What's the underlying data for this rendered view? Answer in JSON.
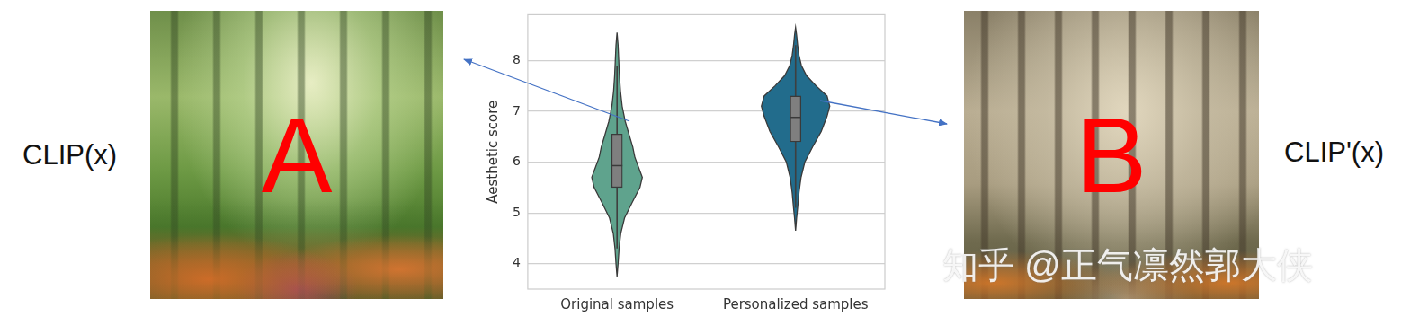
{
  "chart_data": {
    "type": "violin",
    "categories": [
      "Original samples",
      "Personalized samples"
    ],
    "ylabel": "Aesthetic score",
    "ylim": [
      3.5,
      8.9
    ],
    "yticks": [
      4,
      5,
      6,
      7,
      8
    ],
    "grid": true,
    "series": [
      {
        "color": "#5fa38d",
        "density_y": [
          3.75,
          4.0,
          4.3,
          4.6,
          4.9,
          5.2,
          5.5,
          5.7,
          5.9,
          6.1,
          6.3,
          6.5,
          6.8,
          7.1,
          7.4,
          7.7,
          8.0,
          8.3,
          8.55
        ],
        "density": [
          0,
          0.03,
          0.06,
          0.11,
          0.22,
          0.44,
          0.67,
          0.74,
          0.63,
          0.52,
          0.46,
          0.37,
          0.24,
          0.15,
          0.1,
          0.07,
          0.05,
          0.03,
          0
        ],
        "q1": 5.5,
        "median": 5.93,
        "q3": 6.55,
        "whisker_low": 4.3,
        "whisker_high": 7.9
      },
      {
        "color": "#226c8c",
        "density_y": [
          4.65,
          4.9,
          5.1,
          5.4,
          5.7,
          6.0,
          6.3,
          6.6,
          6.9,
          7.1,
          7.3,
          7.5,
          7.7,
          7.9,
          8.1,
          8.3,
          8.5,
          8.65
        ],
        "density": [
          0,
          0.03,
          0.06,
          0.1,
          0.16,
          0.27,
          0.5,
          0.75,
          0.92,
          1.0,
          0.92,
          0.6,
          0.32,
          0.17,
          0.1,
          0.06,
          0.03,
          0
        ],
        "q1": 6.4,
        "median": 6.88,
        "q3": 7.3,
        "whisker_low": 5.1,
        "whisker_high": 8.3
      }
    ]
  },
  "panels": [
    {
      "label": "CLIP(x)",
      "letter": "A"
    },
    {
      "label": "CLIP'(x)",
      "letter": "B"
    }
  ],
  "watermark": "知乎 @正气凛然郭大侠"
}
